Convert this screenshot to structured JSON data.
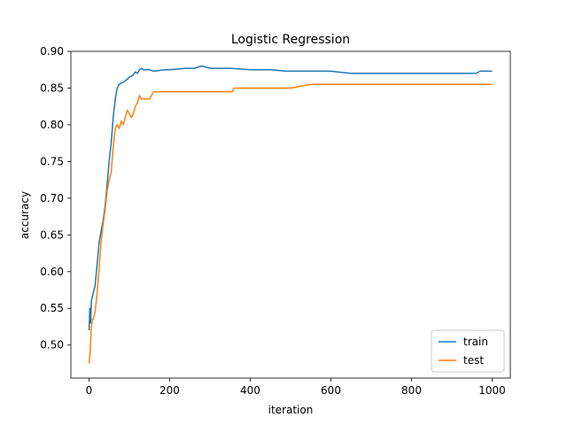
{
  "chart_data": {
    "type": "line",
    "title": "Logistic Regression",
    "xlabel": "iteration",
    "ylabel": "accuracy",
    "xlim": [
      -45,
      1045
    ],
    "ylim": [
      0.455,
      0.9
    ],
    "xticks": [
      0,
      200,
      400,
      600,
      800,
      1000
    ],
    "yticks": [
      0.5,
      0.55,
      0.6,
      0.65,
      0.7,
      0.75,
      0.8,
      0.85,
      0.9
    ],
    "ytick_labels": [
      "0.50",
      "0.55",
      "0.60",
      "0.65",
      "0.70",
      "0.75",
      "0.80",
      "0.85",
      "0.90"
    ],
    "xtick_labels": [
      "0",
      "200",
      "400",
      "600",
      "800",
      "1000"
    ],
    "legend_position": "lower-right",
    "grid": false,
    "series": [
      {
        "name": "train",
        "color": "#1f77b4",
        "x": [
          0,
          2,
          4,
          6,
          8,
          10,
          15,
          20,
          25,
          30,
          35,
          40,
          45,
          50,
          55,
          60,
          65,
          70,
          75,
          80,
          85,
          90,
          95,
          100,
          105,
          110,
          115,
          120,
          125,
          130,
          135,
          150,
          160,
          190,
          200,
          240,
          260,
          280,
          300,
          350,
          400,
          450,
          490,
          500,
          600,
          650,
          700,
          800,
          900,
          960,
          970,
          1000
        ],
        "y": [
          0.52,
          0.55,
          0.53,
          0.56,
          0.565,
          0.57,
          0.58,
          0.61,
          0.64,
          0.655,
          0.67,
          0.69,
          0.72,
          0.75,
          0.775,
          0.81,
          0.835,
          0.85,
          0.855,
          0.857,
          0.858,
          0.86,
          0.862,
          0.865,
          0.866,
          0.868,
          0.872,
          0.87,
          0.875,
          0.877,
          0.875,
          0.875,
          0.873,
          0.875,
          0.875,
          0.877,
          0.877,
          0.88,
          0.877,
          0.877,
          0.875,
          0.875,
          0.873,
          0.873,
          0.873,
          0.87,
          0.87,
          0.87,
          0.87,
          0.87,
          0.873,
          0.873
        ]
      },
      {
        "name": "test",
        "color": "#ff7f0e",
        "x": [
          0,
          3,
          5,
          8,
          10,
          15,
          20,
          25,
          30,
          35,
          40,
          45,
          50,
          55,
          60,
          65,
          70,
          75,
          80,
          85,
          90,
          95,
          100,
          105,
          110,
          115,
          120,
          125,
          130,
          140,
          150,
          160,
          200,
          250,
          300,
          355,
          360,
          400,
          450,
          500,
          550,
          600,
          700,
          800,
          900,
          1000
        ],
        "y": [
          0.475,
          0.49,
          0.52,
          0.535,
          0.535,
          0.545,
          0.57,
          0.605,
          0.64,
          0.665,
          0.685,
          0.71,
          0.725,
          0.735,
          0.77,
          0.795,
          0.8,
          0.795,
          0.805,
          0.8,
          0.81,
          0.82,
          0.815,
          0.81,
          0.815,
          0.825,
          0.83,
          0.84,
          0.835,
          0.835,
          0.835,
          0.845,
          0.845,
          0.845,
          0.845,
          0.845,
          0.85,
          0.85,
          0.85,
          0.85,
          0.855,
          0.855,
          0.855,
          0.855,
          0.855,
          0.855
        ]
      }
    ]
  }
}
